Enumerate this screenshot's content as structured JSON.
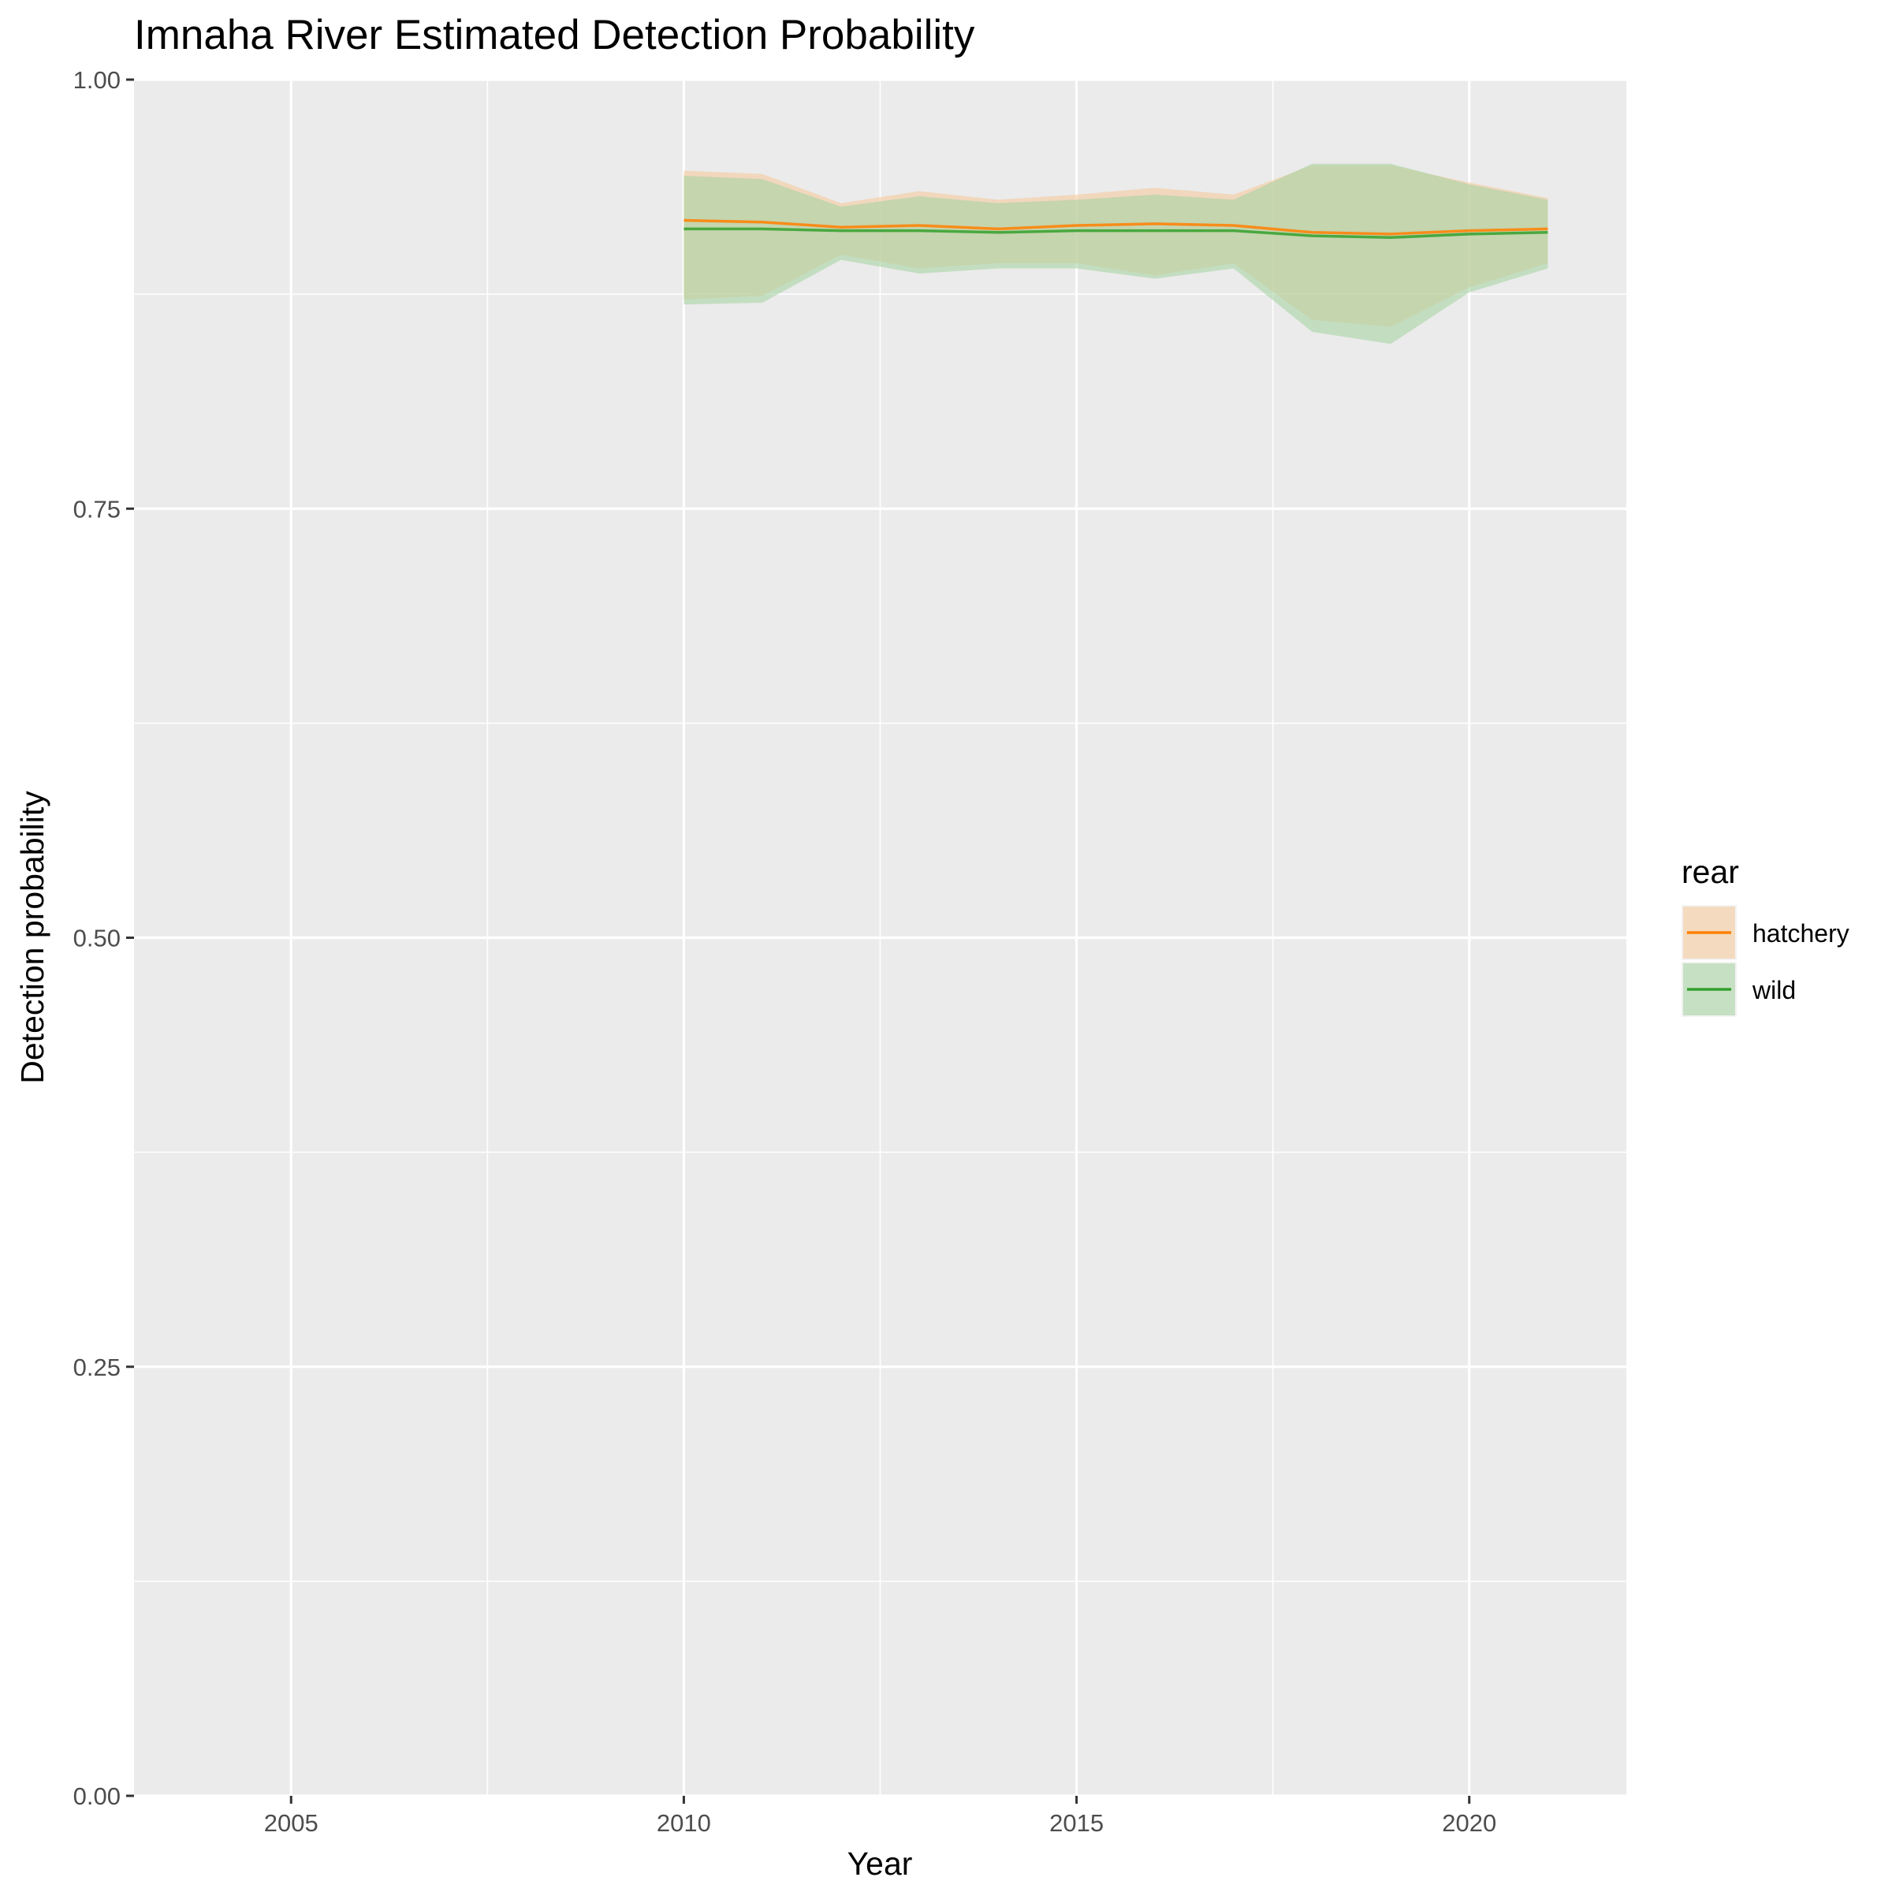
{
  "chart_data": {
    "type": "area",
    "title": "Imnaha River Estimated Detection Probability",
    "xlabel": "Year",
    "ylabel": "Detection probability",
    "xlim": [
      2003,
      2022
    ],
    "ylim": [
      0,
      1
    ],
    "x_ticks": [
      2005,
      2010,
      2015,
      2020
    ],
    "x_tick_labels": [
      "2005",
      "2010",
      "2015",
      "2020"
    ],
    "y_ticks": [
      0,
      0.25,
      0.5,
      0.75,
      1
    ],
    "y_tick_labels": [
      "0.00",
      "0.25",
      "0.50",
      "0.75",
      "1.00"
    ],
    "grid": true,
    "legend": {
      "title": "rear",
      "position": "right"
    },
    "x": [
      2010,
      2011,
      2012,
      2013,
      2014,
      2015,
      2016,
      2017,
      2018,
      2019,
      2020,
      2021
    ],
    "series": [
      {
        "name": "hatchery",
        "line_color": "#ff7f00",
        "fill_color": "#f5c99d",
        "estimate": [
          0.918,
          0.917,
          0.914,
          0.915,
          0.913,
          0.915,
          0.916,
          0.915,
          0.911,
          0.91,
          0.912,
          0.913
        ],
        "upper": [
          0.947,
          0.945,
          0.928,
          0.935,
          0.93,
          0.933,
          0.937,
          0.933,
          0.95,
          0.95,
          0.94,
          0.931
        ],
        "lower": [
          0.872,
          0.874,
          0.898,
          0.89,
          0.893,
          0.893,
          0.886,
          0.893,
          0.86,
          0.856,
          0.879,
          0.893
        ]
      },
      {
        "name": "wild",
        "line_color": "#33a02c",
        "fill_color": "#a9d3a4",
        "estimate": [
          0.913,
          0.913,
          0.912,
          0.912,
          0.911,
          0.912,
          0.912,
          0.912,
          0.909,
          0.908,
          0.91,
          0.911
        ],
        "upper": [
          0.944,
          0.942,
          0.926,
          0.932,
          0.928,
          0.93,
          0.933,
          0.93,
          0.951,
          0.951,
          0.939,
          0.93
        ],
        "lower": [
          0.869,
          0.87,
          0.895,
          0.887,
          0.89,
          0.89,
          0.884,
          0.89,
          0.853,
          0.846,
          0.876,
          0.89
        ]
      }
    ]
  }
}
